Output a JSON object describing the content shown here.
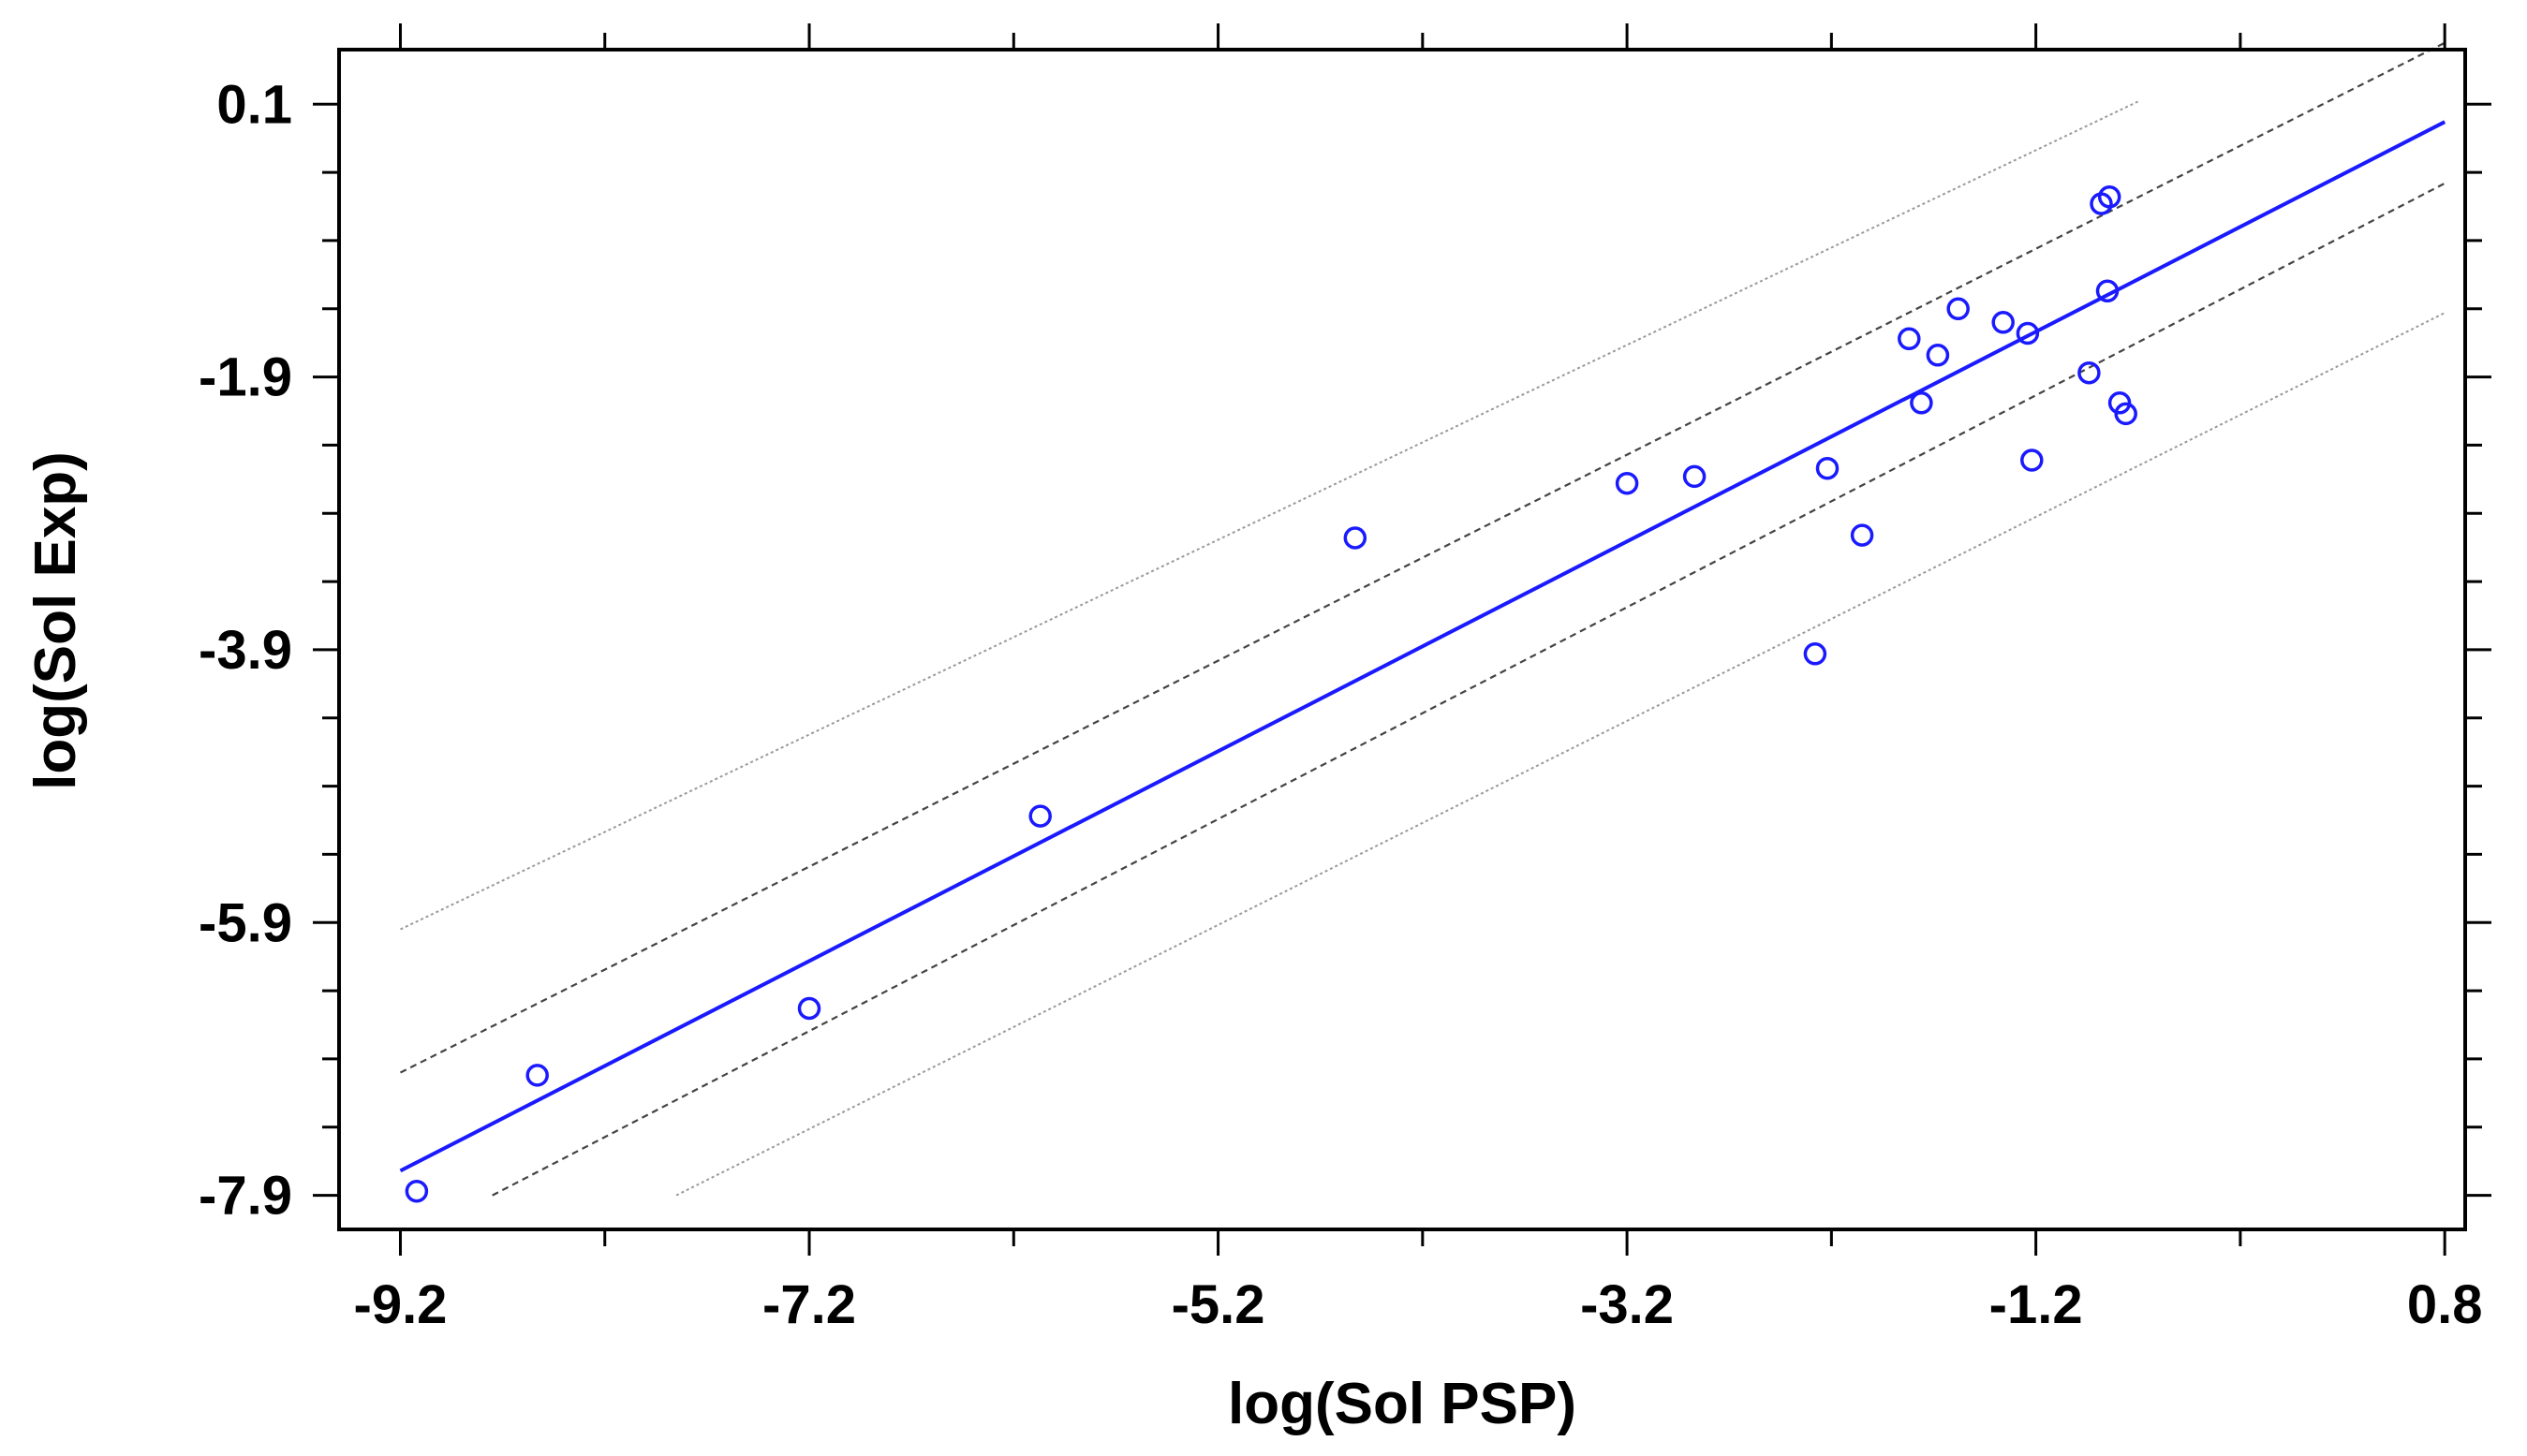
{
  "chart_data": {
    "type": "scatter",
    "title": "",
    "xlabel": "log(Sol PSP)",
    "ylabel": "log(Sol Exp)",
    "xlim": [
      -9.5,
      0.9
    ],
    "ylim": [
      -8.15,
      0.5
    ],
    "xticks": [
      -9.2,
      -7.2,
      -5.2,
      -3.2,
      -1.2,
      0.8
    ],
    "xtick_labels": [
      "-9.2",
      "-7.2",
      "-5.2",
      "-3.2",
      "-1.2",
      "0.8"
    ],
    "yticks": [
      0.1,
      -1.9,
      -3.9,
      -5.9,
      -7.9
    ],
    "ytick_labels": [
      "0.1",
      "-1.9",
      "-3.9",
      "-5.9",
      "-7.9"
    ],
    "colors": {
      "points": "#1a1aff",
      "fit_line": "#1a1aff",
      "confidence_band": "#444444",
      "prediction_band": "#9a9a9a",
      "axes": "#000000"
    },
    "points": [
      {
        "x": -9.12,
        "y": -7.87
      },
      {
        "x": -8.53,
        "y": -7.02
      },
      {
        "x": -7.2,
        "y": -6.53
      },
      {
        "x": -6.07,
        "y": -5.12
      },
      {
        "x": -4.53,
        "y": -3.08
      },
      {
        "x": -3.2,
        "y": -2.68
      },
      {
        "x": -2.87,
        "y": -2.63
      },
      {
        "x": -2.28,
        "y": -3.93
      },
      {
        "x": -2.22,
        "y": -2.57
      },
      {
        "x": -2.05,
        "y": -3.06
      },
      {
        "x": -1.82,
        "y": -1.62
      },
      {
        "x": -1.76,
        "y": -2.09
      },
      {
        "x": -1.68,
        "y": -1.74
      },
      {
        "x": -1.58,
        "y": -1.4
      },
      {
        "x": -1.36,
        "y": -1.5
      },
      {
        "x": -1.24,
        "y": -1.58
      },
      {
        "x": -1.22,
        "y": -2.51
      },
      {
        "x": -0.94,
        "y": -1.87
      },
      {
        "x": -0.88,
        "y": -0.63
      },
      {
        "x": -0.84,
        "y": -0.58
      },
      {
        "x": -0.85,
        "y": -1.27
      },
      {
        "x": -0.79,
        "y": -2.09
      },
      {
        "x": -0.76,
        "y": -2.17
      }
    ],
    "series": [
      {
        "name": "regression fit",
        "style": "solid",
        "x": [
          -9.2,
          0.8
        ],
        "y": [
          -7.72,
          -0.03
        ]
      },
      {
        "name": "confidence upper",
        "style": "dashed",
        "x": [
          -9.2,
          0.8
        ],
        "y": [
          -7.0,
          0.55
        ]
      },
      {
        "name": "confidence lower",
        "style": "dashed",
        "x": [
          -8.75,
          0.8
        ],
        "y": [
          -7.9,
          -0.48
        ]
      },
      {
        "name": "prediction upper",
        "style": "dotted",
        "x": [
          -9.2,
          -0.7
        ],
        "y": [
          -5.95,
          0.12
        ]
      },
      {
        "name": "prediction lower",
        "style": "dotted",
        "x": [
          -7.85,
          0.8
        ],
        "y": [
          -7.9,
          -1.43
        ]
      }
    ]
  }
}
